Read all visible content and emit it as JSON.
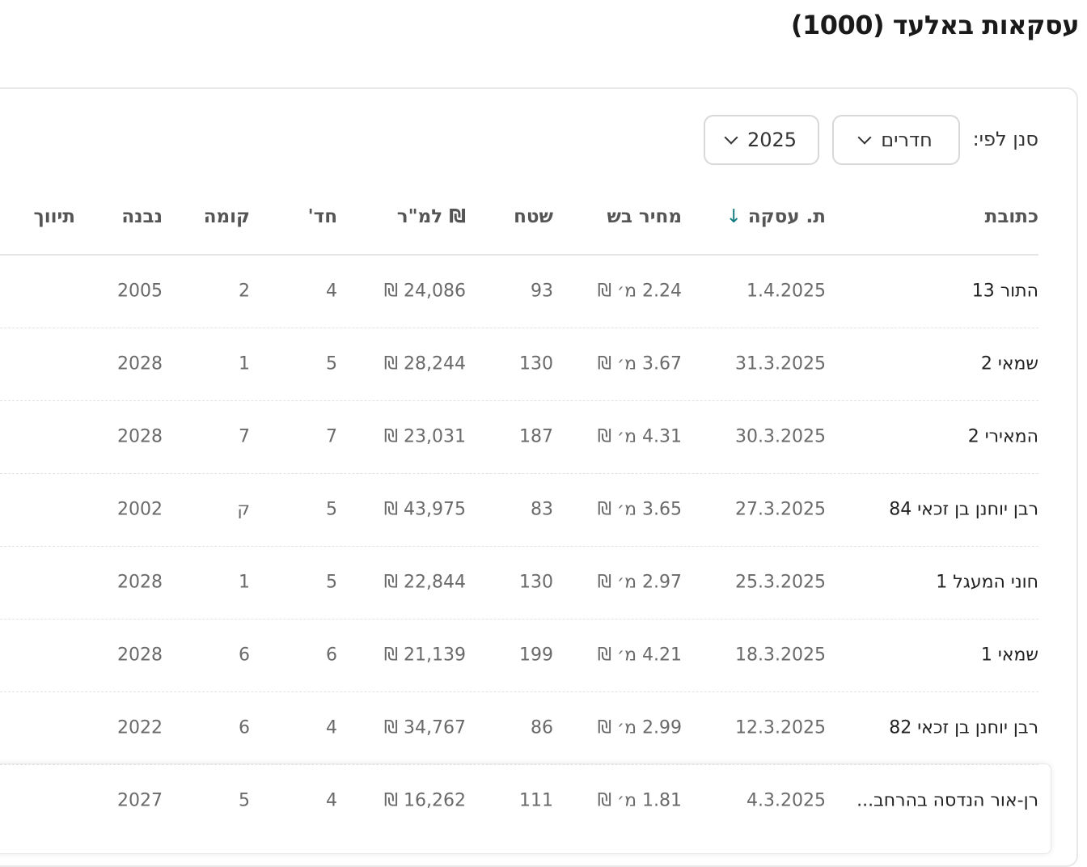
{
  "page": {
    "title": "עסקאות באלעד (1000)"
  },
  "filter": {
    "label": "סנן לפי:",
    "rooms_select": "חדרים",
    "year_select": "2025"
  },
  "columns": [
    "כתובת",
    "ת. עסקה",
    "מחיר בש",
    "שטח",
    "₪ למ\"ר",
    "חד'",
    "קומה",
    "נבנה",
    "תיווך"
  ],
  "sort": {
    "column": "ת. עסקה",
    "direction": "↓",
    "color": "#0f7a80"
  },
  "rows": [
    [
      "התור 13",
      "1.4.2025",
      "2.24 מ׳ ₪",
      "93",
      "24,086 ₪",
      "4",
      "2",
      "2005",
      ""
    ],
    [
      "שמאי 2",
      "31.3.2025",
      "3.67 מ׳ ₪",
      "130",
      "28,244 ₪",
      "5",
      "1",
      "2028",
      ""
    ],
    [
      "המאירי 2",
      "30.3.2025",
      "4.31 מ׳ ₪",
      "187",
      "23,031 ₪",
      "7",
      "7",
      "2028",
      ""
    ],
    [
      "רבן יוחנן בן זכאי 84",
      "27.3.2025",
      "3.65 מ׳ ₪",
      "83",
      "43,975 ₪",
      "5",
      "ק",
      "2002",
      ""
    ],
    [
      "חוני המעגל 1",
      "25.3.2025",
      "2.97 מ׳ ₪",
      "130",
      "22,844 ₪",
      "5",
      "1",
      "2028",
      ""
    ],
    [
      "שמאי 1",
      "18.3.2025",
      "4.21 מ׳ ₪",
      "199",
      "21,139 ₪",
      "6",
      "6",
      "2028",
      ""
    ],
    [
      "רבן יוחנן בן זכאי 82",
      "12.3.2025",
      "2.99 מ׳ ₪",
      "86",
      "34,767 ₪",
      "4",
      "6",
      "2022",
      ""
    ],
    [
      "רן-אור הנדסה בהרחב...",
      "4.3.2025",
      "1.81 מ׳ ₪",
      "111",
      "16,262 ₪",
      "4",
      "5",
      "2027",
      ""
    ]
  ]
}
